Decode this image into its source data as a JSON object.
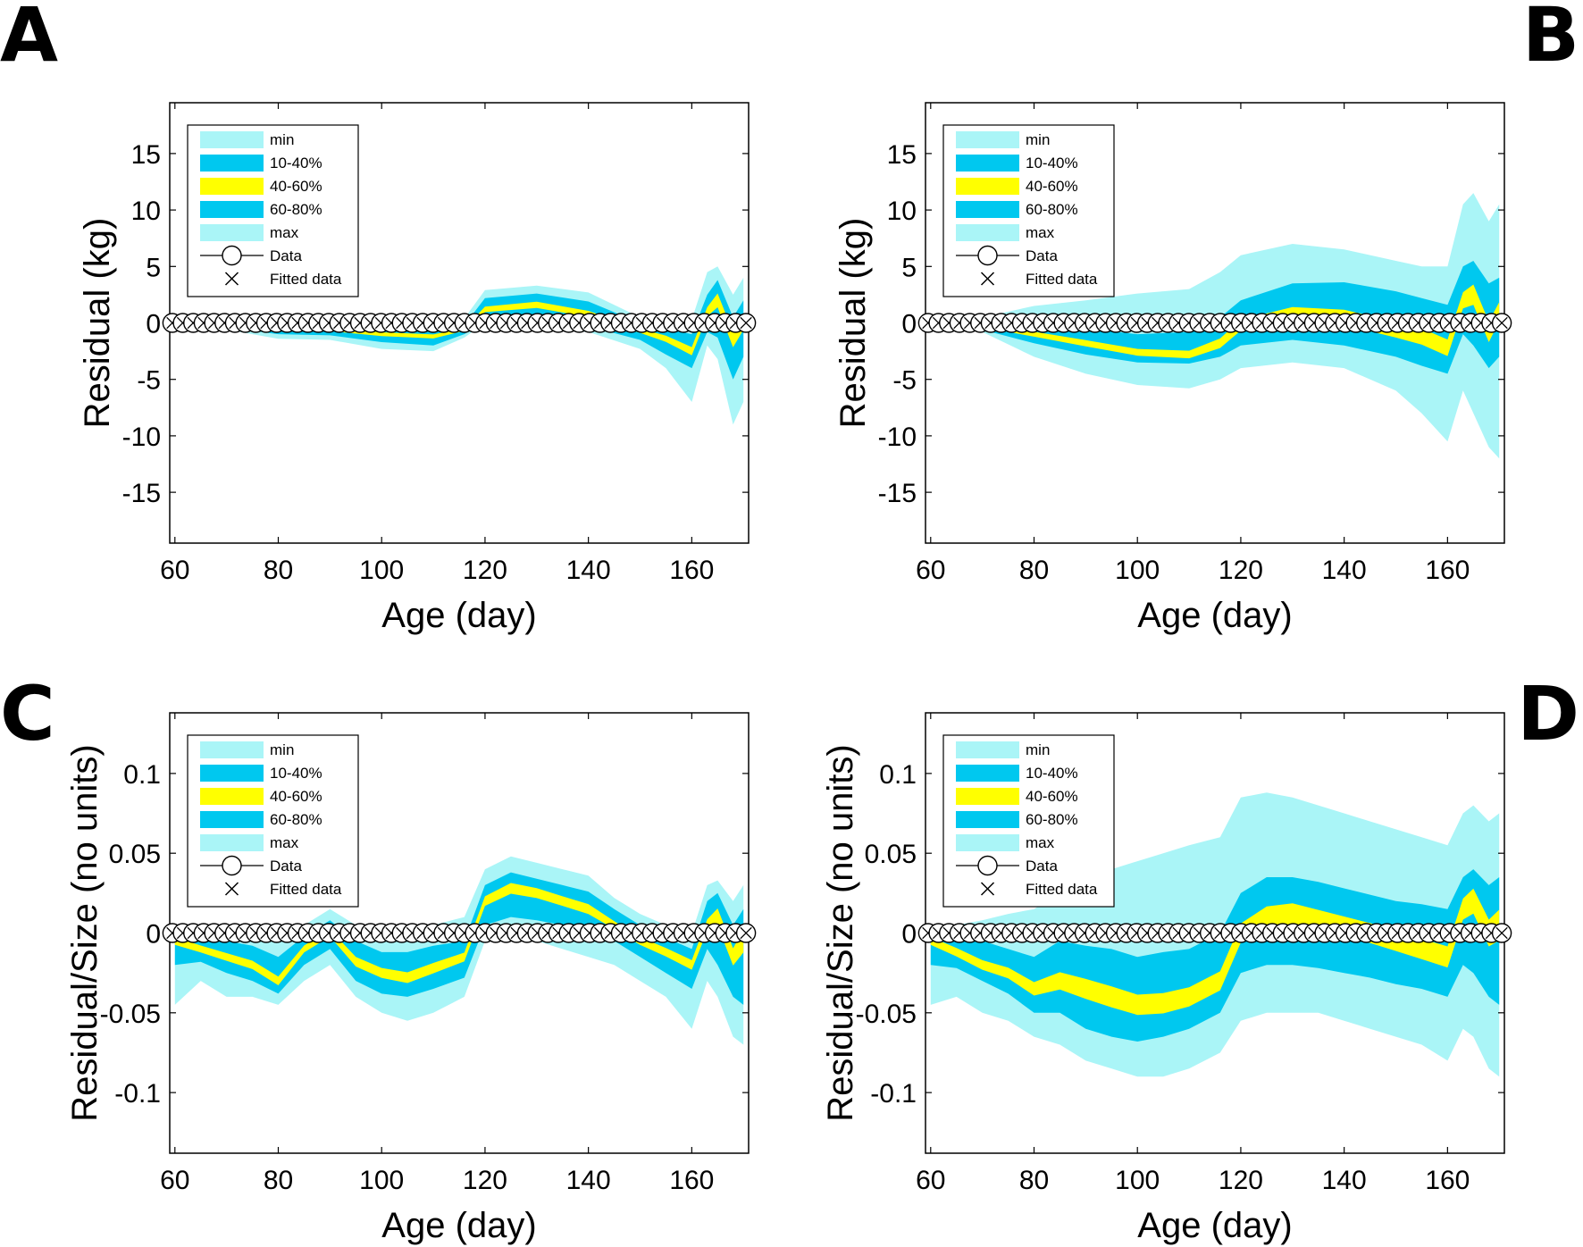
{
  "colors": {
    "min": "#aaf5f7",
    "q1040": "#00c8ef",
    "q4060": "#ffff00",
    "q6080": "#00c8ef",
    "max": "#aaf5f7",
    "axis": "#000000"
  },
  "chart_data": [
    {
      "panel": "A",
      "type": "area",
      "xlabel": "Age (day)",
      "ylabel": "Residual (kg)",
      "xlim": [
        59,
        171
      ],
      "ylim": [
        -19.5,
        19.5
      ],
      "xticks": [
        60,
        80,
        100,
        120,
        140,
        160
      ],
      "xtick_labels": [
        "60",
        "80",
        "100",
        "120",
        "140",
        "160"
      ],
      "yticks": [
        15,
        10,
        5,
        0,
        -5,
        -10,
        -15
      ],
      "ytick_labels": [
        "15",
        "10",
        "5",
        "0",
        "-5",
        "-10",
        "-15"
      ],
      "legend": [
        "min",
        "10-40%",
        "40-60%",
        "60-80%",
        "max",
        "Data",
        "Fitted data"
      ],
      "legend_position": "top-left",
      "x": [
        60,
        70,
        80,
        90,
        100,
        110,
        116,
        120,
        130,
        140,
        150,
        155,
        160,
        163,
        165,
        168,
        170
      ],
      "series": [
        {
          "name": "min",
          "values": [
            0,
            -0.6,
            -1.4,
            -1.5,
            -2.3,
            -2.5,
            -1.3,
            0,
            -0.6,
            -0.8,
            -2.3,
            -4,
            -7,
            -2,
            -3.2,
            -9,
            -7
          ]
        },
        {
          "name": "10-40%",
          "values": [
            0,
            -0.4,
            -1.0,
            -1.1,
            -1.7,
            -2.0,
            -1.0,
            0.2,
            0.3,
            -0.3,
            -1.5,
            -2.8,
            -4.0,
            -0.8,
            -1.3,
            -5,
            -3
          ]
        },
        {
          "name": "40-60%",
          "values": [
            0,
            -0.2,
            -0.5,
            -0.6,
            -1.0,
            -1.2,
            -0.6,
            1.2,
            1.6,
            0.8,
            -0.7,
            -1.4,
            -2.5,
            1.0,
            2.0,
            -1.5,
            0
          ]
        },
        {
          "name": "60-80%",
          "values": [
            0,
            0.1,
            0.0,
            -0.1,
            -0.3,
            -0.5,
            -0.2,
            2.2,
            2.6,
            1.9,
            0.0,
            -0.5,
            -1.0,
            2.5,
            3.8,
            0.5,
            2
          ]
        },
        {
          "name": "max",
          "values": [
            0,
            0.3,
            0.3,
            0.4,
            0.3,
            0.3,
            0.4,
            2.9,
            3.3,
            2.7,
            0.5,
            0.3,
            0.3,
            4.5,
            5.0,
            2.5,
            4
          ]
        }
      ],
      "data_points": {
        "x_start": 59.5,
        "x_end": 170.5,
        "count": 56,
        "y": 0
      }
    },
    {
      "panel": "B",
      "type": "area",
      "xlabel": "Age (day)",
      "ylabel": "Residual (kg)",
      "xlim": [
        59,
        171
      ],
      "ylim": [
        -19.5,
        19.5
      ],
      "xticks": [
        60,
        80,
        100,
        120,
        140,
        160
      ],
      "xtick_labels": [
        "60",
        "80",
        "100",
        "120",
        "140",
        "160"
      ],
      "yticks": [
        15,
        10,
        5,
        0,
        -5,
        -10,
        -15
      ],
      "ytick_labels": [
        "15",
        "10",
        "5",
        "0",
        "-5",
        "-10",
        "-15"
      ],
      "legend": [
        "min",
        "10-40%",
        "40-60%",
        "60-80%",
        "max",
        "Data",
        "Fitted data"
      ],
      "legend_position": "top-left",
      "x": [
        60,
        70,
        80,
        90,
        100,
        110,
        116,
        120,
        130,
        140,
        150,
        155,
        160,
        163,
        165,
        168,
        170
      ],
      "series": [
        {
          "name": "min",
          "values": [
            0,
            -0.8,
            -3.0,
            -4.5,
            -5.5,
            -5.8,
            -5,
            -4,
            -3.5,
            -4,
            -6,
            -8,
            -10.5,
            -6,
            -8,
            -11,
            -12
          ]
        },
        {
          "name": "10-40%",
          "values": [
            0,
            -0.6,
            -1.8,
            -2.8,
            -3.5,
            -3.6,
            -3,
            -2,
            -1.5,
            -2,
            -3,
            -3.8,
            -4.5,
            -1,
            -2,
            -4,
            -3
          ]
        },
        {
          "name": "40-60%",
          "values": [
            0,
            -0.3,
            -1.0,
            -1.8,
            -2.6,
            -2.8,
            -1.8,
            -0.2,
            0.8,
            0.5,
            -0.6,
            -1.2,
            -2.2,
            2.0,
            2.5,
            -0.8,
            1
          ]
        },
        {
          "name": "60-80%",
          "values": [
            0,
            0.0,
            0.0,
            -0.5,
            -1.0,
            -0.8,
            0.5,
            2.0,
            3.5,
            3.6,
            2.8,
            2.2,
            1.6,
            5.0,
            5.5,
            3.5,
            4
          ]
        },
        {
          "name": "max",
          "values": [
            0,
            0.5,
            1.5,
            2.0,
            2.6,
            3.0,
            4.5,
            6.0,
            7.0,
            6.5,
            5.5,
            5.0,
            5.0,
            10.5,
            11.5,
            9.0,
            10.5
          ]
        }
      ],
      "data_points": {
        "x_start": 59.5,
        "x_end": 170.5,
        "count": 56,
        "y": 0
      }
    },
    {
      "panel": "C",
      "type": "area",
      "xlabel": "Age (day)",
      "ylabel": "Residual/Size (no units)",
      "xlim": [
        59,
        171
      ],
      "ylim": [
        -0.138,
        0.138
      ],
      "xticks": [
        60,
        80,
        100,
        120,
        140,
        160
      ],
      "xtick_labels": [
        "60",
        "80",
        "100",
        "120",
        "140",
        "160"
      ],
      "yticks": [
        0.1,
        0.05,
        0,
        -0.05,
        -0.1
      ],
      "ytick_labels": [
        "0.1",
        "0.05",
        "0",
        "-0.05",
        "-0.1"
      ],
      "legend": [
        "min",
        "10-40%",
        "40-60%",
        "60-80%",
        "max",
        "Data",
        "Fitted data"
      ],
      "legend_position": "top-left",
      "x": [
        60,
        65,
        70,
        75,
        80,
        85,
        90,
        95,
        100,
        105,
        110,
        116,
        120,
        125,
        130,
        135,
        140,
        145,
        150,
        155,
        160,
        163,
        165,
        168,
        170
      ],
      "series": [
        {
          "name": "min",
          "values": [
            -0.045,
            -0.03,
            -0.04,
            -0.04,
            -0.045,
            -0.03,
            -0.02,
            -0.04,
            -0.05,
            -0.055,
            -0.05,
            -0.04,
            -0.005,
            -0.005,
            -0.005,
            -0.01,
            -0.015,
            -0.02,
            -0.03,
            -0.04,
            -0.06,
            -0.03,
            -0.04,
            -0.065,
            -0.07
          ]
        },
        {
          "name": "10-40%",
          "values": [
            -0.02,
            -0.018,
            -0.025,
            -0.03,
            -0.038,
            -0.02,
            -0.01,
            -0.03,
            -0.038,
            -0.04,
            -0.035,
            -0.028,
            0.005,
            0.01,
            0.008,
            0.005,
            0.0,
            -0.005,
            -0.015,
            -0.025,
            -0.035,
            -0.01,
            -0.02,
            -0.04,
            -0.045
          ]
        },
        {
          "name": "40-60%",
          "values": [
            -0.005,
            -0.01,
            -0.015,
            -0.02,
            -0.03,
            -0.01,
            0.0,
            -0.018,
            -0.025,
            -0.028,
            -0.022,
            -0.015,
            0.02,
            0.028,
            0.025,
            0.02,
            0.015,
            0.005,
            -0.005,
            -0.012,
            -0.02,
            0.005,
            0.01,
            -0.015,
            -0.005
          ]
        },
        {
          "name": "60-80%",
          "values": [
            0.0,
            0.0,
            -0.005,
            -0.008,
            -0.015,
            -0.002,
            0.008,
            -0.005,
            -0.012,
            -0.012,
            -0.008,
            -0.005,
            0.03,
            0.038,
            0.034,
            0.03,
            0.026,
            0.015,
            0.005,
            -0.003,
            -0.01,
            0.02,
            0.025,
            0.005,
            0.015
          ]
        },
        {
          "name": "max",
          "values": [
            0.0,
            0.0,
            0.0,
            0.002,
            0.0,
            0.005,
            0.015,
            0.005,
            0.0,
            0.0,
            0.005,
            0.01,
            0.04,
            0.048,
            0.044,
            0.04,
            0.036,
            0.022,
            0.012,
            0.005,
            0.0,
            0.03,
            0.033,
            0.02,
            0.03
          ]
        }
      ],
      "data_points": {
        "x_start": 59.5,
        "x_end": 170.5,
        "count": 56,
        "y": 0
      }
    },
    {
      "panel": "D",
      "type": "area",
      "xlabel": "Age (day)",
      "ylabel": "Residual/Size (no units)",
      "xlim": [
        59,
        171
      ],
      "ylim": [
        -0.138,
        0.138
      ],
      "xticks": [
        60,
        80,
        100,
        120,
        140,
        160
      ],
      "xtick_labels": [
        "60",
        "80",
        "100",
        "120",
        "140",
        "160"
      ],
      "yticks": [
        0.1,
        0.05,
        0,
        -0.05,
        -0.1
      ],
      "ytick_labels": [
        "0.1",
        "0.05",
        "0",
        "-0.05",
        "-0.1"
      ],
      "legend": [
        "min",
        "10-40%",
        "40-60%",
        "60-80%",
        "max",
        "Data",
        "Fitted data"
      ],
      "legend_position": "top-left",
      "x": [
        60,
        65,
        70,
        75,
        80,
        85,
        90,
        95,
        100,
        105,
        110,
        116,
        120,
        125,
        130,
        135,
        140,
        145,
        150,
        155,
        160,
        163,
        165,
        168,
        170
      ],
      "series": [
        {
          "name": "min",
          "values": [
            -0.045,
            -0.04,
            -0.05,
            -0.055,
            -0.065,
            -0.07,
            -0.08,
            -0.085,
            -0.09,
            -0.09,
            -0.085,
            -0.075,
            -0.055,
            -0.05,
            -0.05,
            -0.05,
            -0.055,
            -0.06,
            -0.065,
            -0.07,
            -0.08,
            -0.06,
            -0.065,
            -0.085,
            -0.09
          ]
        },
        {
          "name": "10-40%",
          "values": [
            -0.02,
            -0.022,
            -0.03,
            -0.038,
            -0.05,
            -0.05,
            -0.06,
            -0.065,
            -0.068,
            -0.065,
            -0.06,
            -0.05,
            -0.025,
            -0.02,
            -0.02,
            -0.022,
            -0.025,
            -0.028,
            -0.032,
            -0.035,
            -0.04,
            -0.02,
            -0.025,
            -0.04,
            -0.045
          ]
        },
        {
          "name": "40-60%",
          "values": [
            -0.005,
            -0.012,
            -0.02,
            -0.025,
            -0.035,
            -0.03,
            -0.035,
            -0.04,
            -0.045,
            -0.044,
            -0.04,
            -0.03,
            0.0,
            0.01,
            0.012,
            0.008,
            0.004,
            0.0,
            -0.005,
            -0.01,
            -0.015,
            0.015,
            0.02,
            0.0,
            0.005
          ]
        },
        {
          "name": "60-80%",
          "values": [
            0.0,
            0.0,
            -0.005,
            -0.01,
            -0.015,
            -0.005,
            -0.008,
            -0.01,
            -0.015,
            -0.012,
            -0.01,
            0.0,
            0.025,
            0.035,
            0.035,
            0.032,
            0.028,
            0.024,
            0.02,
            0.018,
            0.015,
            0.035,
            0.04,
            0.03,
            0.035
          ]
        },
        {
          "name": "max",
          "values": [
            0.0,
            0.005,
            0.008,
            0.012,
            0.015,
            0.025,
            0.035,
            0.04,
            0.045,
            0.05,
            0.055,
            0.06,
            0.085,
            0.088,
            0.085,
            0.08,
            0.075,
            0.07,
            0.065,
            0.06,
            0.055,
            0.075,
            0.08,
            0.07,
            0.075
          ]
        }
      ],
      "data_points": {
        "x_start": 59.5,
        "x_end": 170.5,
        "count": 56,
        "y": 0
      }
    }
  ]
}
